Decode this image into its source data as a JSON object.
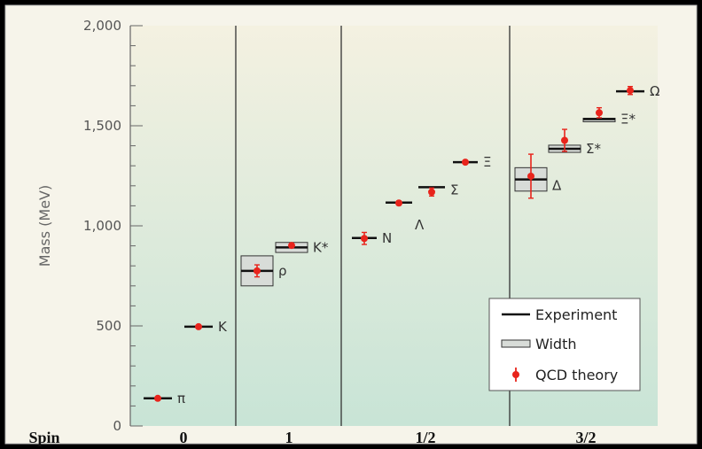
{
  "chart_data": {
    "type": "scatter",
    "ylabel": "Mass (MeV)",
    "ylim": [
      0,
      2000
    ],
    "yticks": [
      0,
      500,
      1000,
      1500,
      2000
    ],
    "ytick_labels": [
      "0",
      "500",
      "1,000",
      "1,500",
      "2,000"
    ],
    "spin_axis_label": "Spin",
    "spin_groups": [
      {
        "label": "0",
        "particles": [
          {
            "name": "π",
            "experiment": 138,
            "theory": 138,
            "theory_err": 0,
            "width": 0
          },
          {
            "name": "K",
            "experiment": 496,
            "theory": 496,
            "theory_err": 0,
            "width": 0
          }
        ]
      },
      {
        "label": "1",
        "particles": [
          {
            "name": "ρ",
            "experiment": 775,
            "theory": 775,
            "theory_err": 30,
            "width": 150
          },
          {
            "name": "K*",
            "experiment": 892,
            "theory": 902,
            "theory_err": 10,
            "width": 50
          }
        ]
      },
      {
        "label": "1/2",
        "particles": [
          {
            "name": "N",
            "experiment": 939,
            "theory": 937,
            "theory_err": 30,
            "width": 0
          },
          {
            "name": "Λ",
            "experiment": 1116,
            "theory": 1114,
            "theory_err": 10,
            "width": 0
          },
          {
            "name": "Σ",
            "experiment": 1193,
            "theory": 1169,
            "theory_err": 20,
            "width": 0
          },
          {
            "name": "Ξ",
            "experiment": 1318,
            "theory": 1318,
            "theory_err": 0,
            "width": 0
          }
        ]
      },
      {
        "label": "3/2",
        "particles": [
          {
            "name": "Δ",
            "experiment": 1232,
            "theory": 1248,
            "theory_err": 110,
            "width": 117
          },
          {
            "name": "Σ*",
            "experiment": 1385,
            "theory": 1427,
            "theory_err": 55,
            "width": 36
          },
          {
            "name": "Ξ*",
            "experiment": 1533,
            "theory": 1565,
            "theory_err": 25,
            "width": 9
          },
          {
            "name": "Ω",
            "experiment": 1672,
            "theory": 1676,
            "theory_err": 20,
            "width": 0
          }
        ]
      }
    ],
    "legend": {
      "position": "bottom-right",
      "entries": [
        {
          "label": "Experiment",
          "kind": "line"
        },
        {
          "label": "Width",
          "kind": "box"
        },
        {
          "label": "QCD theory",
          "kind": "point"
        }
      ]
    },
    "colors": {
      "theory": "#e8241c",
      "experiment": "#111111",
      "width_fill": "#d8dcd8",
      "background_top": "#f4f1e1",
      "background_bottom": "#c8e4d6"
    }
  }
}
